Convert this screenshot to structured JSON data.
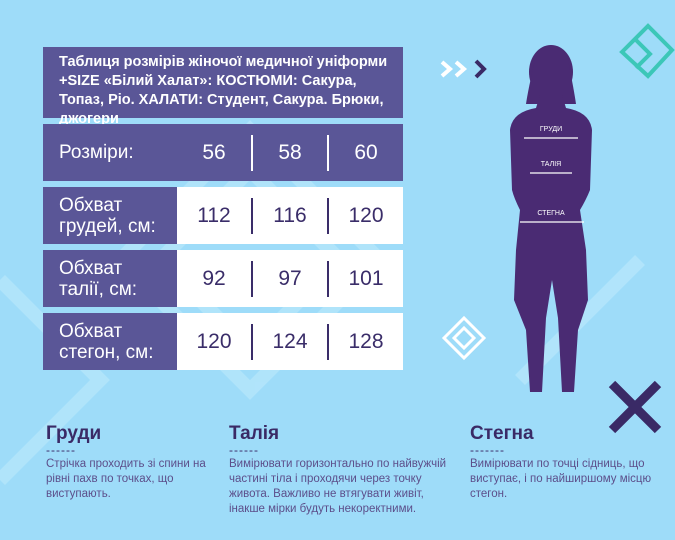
{
  "title": "Таблиця розмірів жіночої медичної уніформи +SIZE «Білий Халат»: КОСТЮМИ: Сакура, Топаз, Ріо. ХАЛАТИ: Студент, Сакура. Брюки, джогери",
  "table": {
    "header": {
      "label": "Розміри:",
      "values": [
        "56",
        "58",
        "60"
      ]
    },
    "rows": [
      {
        "label1": "Обхват",
        "label2": "грудей, см:",
        "values": [
          "112",
          "116",
          "120"
        ]
      },
      {
        "label1": "Обхват",
        "label2": "талії, см:",
        "values": [
          "92",
          "97",
          "101"
        ]
      },
      {
        "label1": "Обхват",
        "label2": "стегон, см:",
        "values": [
          "120",
          "124",
          "128"
        ]
      }
    ]
  },
  "figure": {
    "labels": [
      "ГРУДИ",
      "ТАЛІЯ",
      "СТЕГНА"
    ]
  },
  "sections": [
    {
      "title": "Груди",
      "dash": "------",
      "text": "Стрічка проходить зі спини на рівні пахв по точках, що виступають."
    },
    {
      "title": "Талія",
      "dash": "------",
      "text": "Вимірювати горизонтально по найвужчій частині тіла і проходячи через точку живота. Важливо не втягувати живіт, інакше мірки будуть некоректними."
    },
    {
      "title": "Стегна",
      "dash": "-------",
      "text": "Вимірювати по точці сідниць, що виступає, і по найширшому місцю стегон."
    }
  ],
  "colors": {
    "background": "#9edcf9",
    "purple": "#5a5697",
    "dark": "#3a2a66",
    "teal": "#3cc7b8"
  }
}
